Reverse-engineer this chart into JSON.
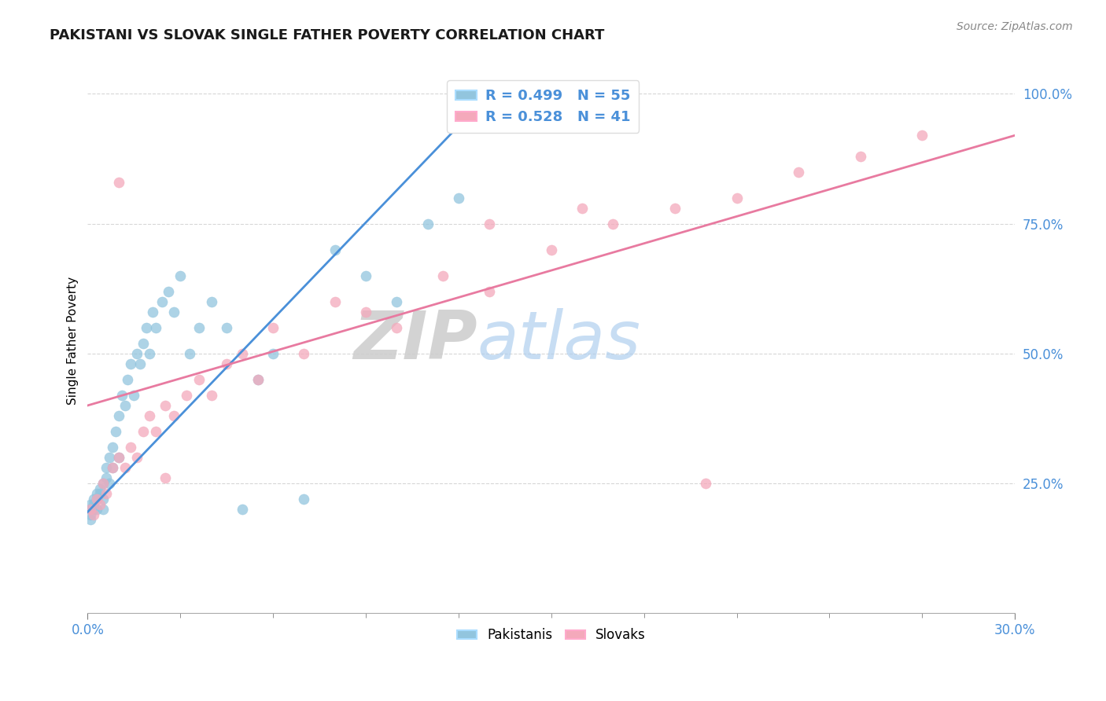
{
  "title": "PAKISTANI VS SLOVAK SINGLE FATHER POVERTY CORRELATION CHART",
  "source": "Source: ZipAtlas.com",
  "ylabel_label": "Single Father Poverty",
  "xlim": [
    0.0,
    0.3
  ],
  "ylim": [
    0.0,
    1.05
  ],
  "ytick_vals": [
    0.25,
    0.5,
    0.75,
    1.0
  ],
  "ytick_labels": [
    "25.0%",
    "50.0%",
    "75.0%",
    "100.0%"
  ],
  "xtick_vals": [
    0.0,
    0.3
  ],
  "xtick_labels": [
    "0.0%",
    "30.0%"
  ],
  "blue_color": "#92c5de",
  "pink_color": "#f4a9bb",
  "blue_line_color": "#4a90d9",
  "pink_line_color": "#e87aa0",
  "tick_color": "#4a90d9",
  "pakistani_x": [
    0.001,
    0.001,
    0.001,
    0.001,
    0.002,
    0.002,
    0.002,
    0.003,
    0.003,
    0.003,
    0.004,
    0.004,
    0.005,
    0.005,
    0.005,
    0.006,
    0.006,
    0.007,
    0.007,
    0.008,
    0.008,
    0.009,
    0.01,
    0.01,
    0.011,
    0.012,
    0.013,
    0.014,
    0.015,
    0.016,
    0.017,
    0.018,
    0.019,
    0.02,
    0.021,
    0.022,
    0.024,
    0.026,
    0.028,
    0.03,
    0.033,
    0.036,
    0.04,
    0.045,
    0.05,
    0.055,
    0.06,
    0.07,
    0.08,
    0.09,
    0.1,
    0.11,
    0.12,
    0.15,
    0.175
  ],
  "pakistani_y": [
    0.2,
    0.19,
    0.21,
    0.18,
    0.2,
    0.22,
    0.21,
    0.23,
    0.2,
    0.22,
    0.23,
    0.24,
    0.22,
    0.25,
    0.2,
    0.28,
    0.26,
    0.3,
    0.25,
    0.32,
    0.28,
    0.35,
    0.38,
    0.3,
    0.42,
    0.4,
    0.45,
    0.48,
    0.42,
    0.5,
    0.48,
    0.52,
    0.55,
    0.5,
    0.58,
    0.55,
    0.6,
    0.62,
    0.58,
    0.65,
    0.5,
    0.55,
    0.6,
    0.55,
    0.2,
    0.45,
    0.5,
    0.22,
    0.7,
    0.65,
    0.6,
    0.75,
    0.8,
    0.95,
    1.0
  ],
  "slovak_x": [
    0.001,
    0.002,
    0.003,
    0.004,
    0.005,
    0.006,
    0.008,
    0.01,
    0.012,
    0.014,
    0.016,
    0.018,
    0.02,
    0.022,
    0.025,
    0.028,
    0.032,
    0.036,
    0.04,
    0.045,
    0.05,
    0.055,
    0.06,
    0.07,
    0.08,
    0.09,
    0.1,
    0.115,
    0.13,
    0.15,
    0.17,
    0.19,
    0.21,
    0.23,
    0.25,
    0.27,
    0.13,
    0.16,
    0.01,
    0.025,
    0.2
  ],
  "slovak_y": [
    0.2,
    0.19,
    0.22,
    0.21,
    0.25,
    0.23,
    0.28,
    0.3,
    0.28,
    0.32,
    0.3,
    0.35,
    0.38,
    0.35,
    0.4,
    0.38,
    0.42,
    0.45,
    0.42,
    0.48,
    0.5,
    0.45,
    0.55,
    0.5,
    0.6,
    0.58,
    0.55,
    0.65,
    0.62,
    0.7,
    0.75,
    0.78,
    0.8,
    0.85,
    0.88,
    0.92,
    0.75,
    0.78,
    0.83,
    0.26,
    0.25
  ],
  "blue_line_x0": 0.0,
  "blue_line_y0": 0.195,
  "blue_line_x1": 0.13,
  "blue_line_y1": 1.0,
  "pink_line_x0": 0.0,
  "pink_line_y0": 0.4,
  "pink_line_x1": 0.3,
  "pink_line_y1": 0.92
}
